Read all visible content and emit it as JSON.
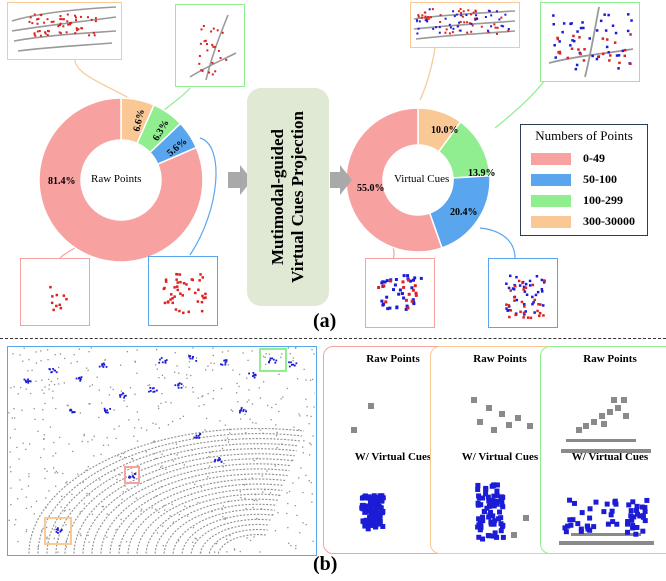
{
  "colors": {
    "bin_0_49": "#f7a1a1",
    "bin_50_100": "#5aa6ee",
    "bin_100_299": "#90ee90",
    "bin_300_30000": "#f9c895",
    "virtual_points": "#1c1cd6",
    "raw_points": "#8a8a8a",
    "projection_box": "#dfe9d4"
  },
  "part_a": {
    "label": "(a)",
    "raw_donut": {
      "center_label": "Raw Points",
      "slices": [
        {
          "bin": "0-49",
          "percent": 81.4,
          "label": "81.4%"
        },
        {
          "bin": "300-30000",
          "percent": 6.6,
          "label": "6.6%"
        },
        {
          "bin": "100-299",
          "percent": 6.3,
          "label": "6.3%"
        },
        {
          "bin": "50-100",
          "percent": 5.6,
          "label": "5.6%"
        }
      ]
    },
    "virtual_donut": {
      "center_label": "Virtual Cues",
      "slices": [
        {
          "bin": "0-49",
          "percent": 55.0,
          "label": "55.0%"
        },
        {
          "bin": "300-30000",
          "percent": 10.0,
          "label": "10.0%"
        },
        {
          "bin": "100-299",
          "percent": 13.9,
          "label": "13.9%"
        },
        {
          "bin": "50-100",
          "percent": 20.4,
          "label": "20.4%"
        }
      ]
    },
    "projection_label_line1": "Mutimodal-guided",
    "projection_label_line2": "Virtual  Cues Projection",
    "legend": {
      "title": "Numbers of Points",
      "items": [
        "0-49",
        "50-100",
        "100-299",
        "300-30000"
      ]
    }
  },
  "part_b": {
    "label": "(b)",
    "panels": [
      {
        "top_label": "Raw Points",
        "bottom_label": "W/ Virtual Cues"
      },
      {
        "top_label": "Raw Points",
        "bottom_label": "W/ Virtual Cues"
      },
      {
        "top_label": "Raw Points",
        "bottom_label": "W/ Virtual Cues"
      }
    ]
  }
}
